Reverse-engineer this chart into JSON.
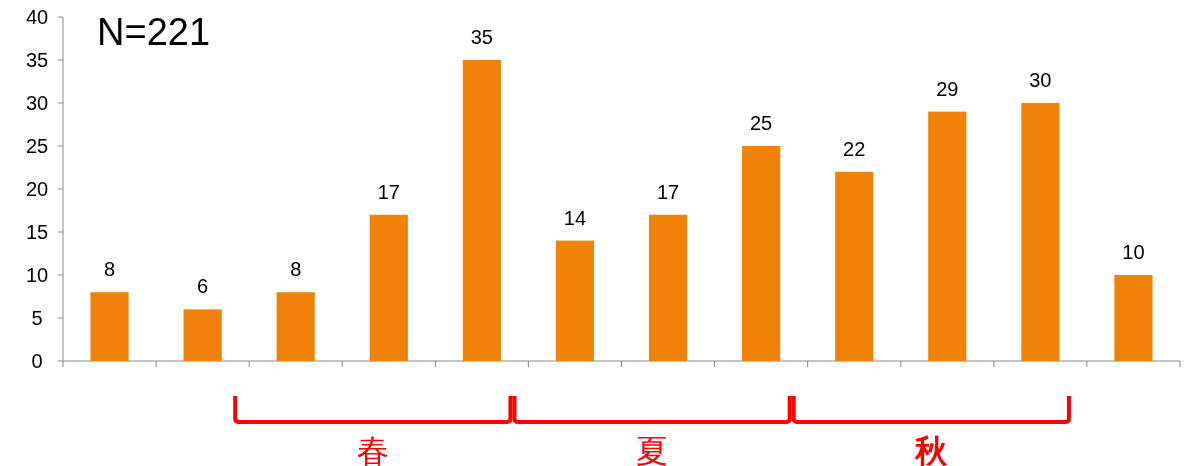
{
  "chart_data": {
    "type": "bar",
    "title": "N=221",
    "categories": [
      null,
      null,
      null,
      null,
      null,
      null,
      null,
      null,
      null,
      null,
      null,
      null
    ],
    "values": [
      8,
      6,
      8,
      17,
      35,
      14,
      17,
      25,
      22,
      29,
      30,
      10
    ],
    "color": "#f0820a",
    "data_labels": true,
    "ylim": [
      0,
      40
    ],
    "yticks": [
      0,
      5,
      10,
      15,
      20,
      25,
      30,
      35,
      40
    ],
    "annotations": [
      "春",
      "夏",
      "秋"
    ]
  }
}
